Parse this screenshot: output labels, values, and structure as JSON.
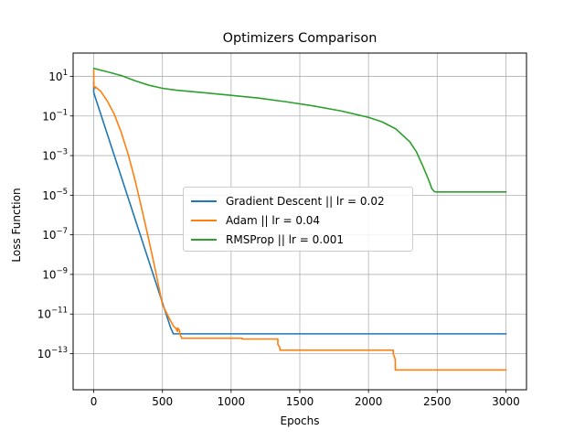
{
  "chart_data": {
    "type": "line",
    "title": "Optimizers Comparison",
    "xlabel": "Epochs",
    "ylabel": "Loss Function",
    "yscale": "log",
    "xlim": [
      -150,
      3150
    ],
    "ylim": [
      1.5e-15,
      150
    ],
    "x_ticks": [
      0,
      500,
      1000,
      1500,
      2000,
      2500,
      3000
    ],
    "x_tick_labels": [
      "0",
      "500",
      "1000",
      "1500",
      "2000",
      "2500",
      "3000"
    ],
    "y_ticks": [
      1e-13,
      1e-11,
      1e-09,
      1e-07,
      1e-05,
      0.001,
      0.1,
      10
    ],
    "y_tick_bases": [
      "10",
      "10",
      "10",
      "10",
      "10",
      "10",
      "10",
      "10"
    ],
    "y_tick_exponents": [
      "−13",
      "−11",
      "−9",
      "−7",
      "−5",
      "−3",
      "−1",
      "1"
    ],
    "grid": true,
    "legend_position": "center",
    "series": [
      {
        "name": "Gradient Descent || lr = 0.02",
        "color": "#1f77b4",
        "x": [
          0,
          0,
          560,
          580,
          3000
        ],
        "y": [
          5,
          1.5,
          2e-12,
          1e-12,
          1e-12
        ]
      },
      {
        "name": "Adam || lr = 0.04",
        "color": "#ff7f0e",
        "x": [
          0,
          0,
          5,
          10,
          10,
          50,
          100,
          150,
          200,
          250,
          300,
          350,
          400,
          450,
          500,
          550,
          580,
          600,
          610,
          610,
          625,
          625,
          640,
          640,
          1080,
          1080,
          1340,
          1340,
          1355,
          1355,
          2180,
          2180,
          2195,
          2195,
          3000
        ],
        "y": [
          20,
          3,
          3,
          2.5,
          3,
          1.8,
          0.55,
          0.12,
          0.015,
          0.0012,
          6e-05,
          2e-06,
          6e-08,
          1.5e-09,
          3e-11,
          6e-12,
          2.5e-12,
          1.8e-12,
          1.3e-12,
          2e-12,
          1.5e-12,
          1e-12,
          6.5e-13,
          6e-13,
          6e-13,
          5.5e-13,
          5.5e-13,
          3e-13,
          2e-13,
          1.5e-13,
          1.5e-13,
          1e-13,
          5e-14,
          1.5e-14,
          1.5e-14
        ]
      },
      {
        "name": "RMSProp || lr = 0.001",
        "color": "#2ca02c",
        "x": [
          0,
          100,
          200,
          300,
          400,
          500,
          600,
          800,
          1000,
          1200,
          1400,
          1600,
          1800,
          2000,
          2100,
          2200,
          2300,
          2350,
          2400,
          2430,
          2450,
          2460,
          2470,
          2480,
          2500,
          2600,
          3000
        ],
        "y": [
          25,
          17,
          11,
          6,
          3.6,
          2.5,
          2.0,
          1.5,
          1.1,
          0.8,
          0.52,
          0.32,
          0.18,
          0.085,
          0.05,
          0.022,
          0.005,
          0.0015,
          0.00025,
          8e-05,
          3.5e-05,
          2.2e-05,
          1.8e-05,
          1.5e-05,
          1.45e-05,
          1.45e-05,
          1.45e-05
        ]
      }
    ]
  }
}
